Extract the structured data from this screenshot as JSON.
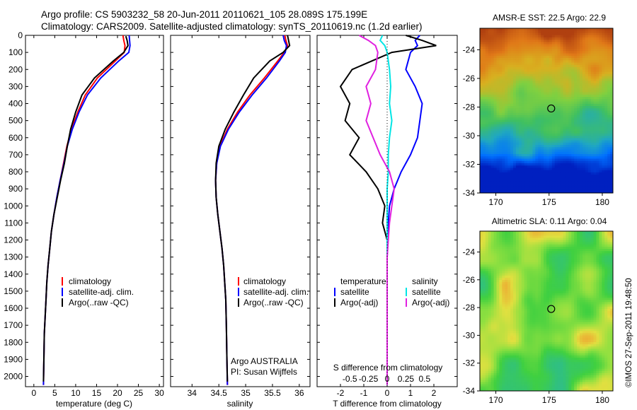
{
  "header": {
    "line1": "Argo profile: CS 5903232_58 20-Jun-2011 20110621_105 28.089S 175.199E",
    "line2": "Climatology: CARS2009. Satellite-adjusted climatology: synTS_20110619.nc (1.2d earlier)"
  },
  "side_stamp": "©IMOS 27-Sep-2011 19:48:50",
  "colors": {
    "red": "#ff0000",
    "blue": "#0000ff",
    "black": "#000000",
    "cyan": "#00e5e5",
    "magenta": "#e020e0"
  },
  "chart_data": [
    {
      "type": "line",
      "panel": "temperature",
      "xlabel": "temperature (deg C)",
      "xlim": [
        -2,
        31
      ],
      "xticks": [
        0,
        5,
        10,
        15,
        20,
        25,
        30
      ],
      "ylim": [
        0,
        2060
      ],
      "yticks": [
        0,
        100,
        200,
        300,
        400,
        500,
        600,
        700,
        800,
        900,
        1000,
        1100,
        1200,
        1300,
        1400,
        1500,
        1600,
        1700,
        1800,
        1900,
        2000
      ],
      "y_reversed": true,
      "legend": [
        "climatology",
        "satellite-adj. clim.",
        "Argo(..raw -QC)"
      ],
      "series": [
        {
          "name": "climatology",
          "color": "#ff0000",
          "x": [
            21.3,
            21.5,
            21.8,
            21.6,
            19.5,
            15.2,
            12.3,
            10.5,
            9.0,
            7.9,
            7.1,
            6.3,
            5.5,
            4.8,
            4.2,
            3.8,
            3.4,
            3.1,
            2.9,
            2.7,
            2.5,
            2.4,
            2.3
          ],
          "y": [
            0,
            30,
            60,
            100,
            150,
            250,
            350,
            450,
            550,
            650,
            750,
            850,
            950,
            1050,
            1150,
            1250,
            1350,
            1450,
            1550,
            1650,
            1750,
            1900,
            2050
          ]
        },
        {
          "name": "satellite-adj. clim.",
          "color": "#0000ff",
          "x": [
            22.8,
            22.9,
            23.0,
            22.7,
            20.3,
            16.0,
            12.8,
            10.8,
            9.2,
            8.0,
            7.2,
            6.3,
            5.5,
            4.8,
            4.2,
            3.8,
            3.4,
            3.1,
            2.9,
            2.7,
            2.5,
            2.4,
            2.3
          ],
          "y": [
            0,
            30,
            60,
            100,
            150,
            250,
            350,
            450,
            550,
            650,
            750,
            850,
            950,
            1050,
            1150,
            1250,
            1350,
            1450,
            1550,
            1650,
            1750,
            1900,
            2050
          ]
        },
        {
          "name": "Argo(..raw -QC)",
          "color": "#000000",
          "x": [
            22.0,
            22.3,
            22.5,
            21.5,
            19.0,
            14.5,
            11.5,
            10.0,
            8.8,
            8.0,
            7.3,
            6.4,
            5.6,
            4.8,
            4.2,
            3.8,
            3.4,
            3.1,
            2.9,
            2.7,
            2.5,
            2.4,
            2.3
          ],
          "y": [
            5,
            30,
            60,
            100,
            150,
            250,
            350,
            450,
            550,
            650,
            750,
            850,
            950,
            1050,
            1150,
            1250,
            1350,
            1450,
            1550,
            1650,
            1750,
            1900,
            2030
          ]
        }
      ]
    },
    {
      "type": "line",
      "panel": "salinity",
      "xlabel": "salinity",
      "xlim": [
        33.6,
        36.2
      ],
      "xticks": [
        34,
        34.5,
        35,
        35.5,
        36
      ],
      "ylim": [
        0,
        2060
      ],
      "y_reversed": true,
      "legend": [
        "climatology",
        "satellite-adj. clim.",
        "Argo(..raw -QC)"
      ],
      "annotation": [
        "Argo AUSTRALIA",
        "PI: Susan Wijffels"
      ],
      "series": [
        {
          "name": "climatology",
          "color": "#ff0000",
          "x": [
            35.73,
            35.75,
            35.78,
            35.72,
            35.6,
            35.35,
            35.08,
            34.85,
            34.66,
            34.52,
            34.46,
            34.44,
            34.45,
            34.48,
            34.52,
            34.56,
            34.59,
            34.61,
            34.63,
            34.64,
            34.65,
            34.66
          ],
          "y": [
            0,
            30,
            60,
            100,
            150,
            250,
            350,
            450,
            550,
            650,
            750,
            850,
            950,
            1050,
            1150,
            1250,
            1350,
            1450,
            1550,
            1700,
            1900,
            2050
          ]
        },
        {
          "name": "satellite-adj. clim.",
          "color": "#0000ff",
          "x": [
            35.7,
            35.72,
            35.76,
            35.74,
            35.63,
            35.39,
            35.12,
            34.88,
            34.68,
            34.53,
            34.46,
            34.44,
            34.45,
            34.48,
            34.52,
            34.56,
            34.59,
            34.61,
            34.63,
            34.64,
            34.65,
            34.66
          ],
          "y": [
            0,
            30,
            60,
            100,
            150,
            250,
            350,
            450,
            550,
            650,
            750,
            850,
            950,
            1050,
            1150,
            1250,
            1350,
            1450,
            1550,
            1700,
            1900,
            2050
          ]
        },
        {
          "name": "Argo(..raw -QC)",
          "color": "#000000",
          "x": [
            35.78,
            35.8,
            35.82,
            35.7,
            35.45,
            35.15,
            34.96,
            34.78,
            34.62,
            34.5,
            34.45,
            34.44,
            34.45,
            34.48,
            34.52,
            34.56,
            34.59,
            34.61,
            34.63,
            34.64,
            34.65,
            34.66
          ],
          "y": [
            0,
            30,
            60,
            100,
            150,
            250,
            350,
            450,
            550,
            650,
            750,
            850,
            950,
            1050,
            1150,
            1250,
            1350,
            1450,
            1550,
            1700,
            1900,
            2030
          ]
        }
      ]
    },
    {
      "type": "line",
      "panel": "difference",
      "xlabel": "T difference from climatology",
      "xlabel_top": "S difference from climatology",
      "xlim": [
        -3,
        3
      ],
      "xticks": [
        -2,
        -1,
        0,
        1,
        2
      ],
      "xticks_top_labels": [
        "-0.5",
        "-0.25",
        "0",
        "0.25",
        "0.5"
      ],
      "xticks_top_values": [
        -1.6,
        -0.8,
        0,
        0.8,
        1.6
      ],
      "ylim": [
        0,
        2060
      ],
      "y_reversed": true,
      "legend_temperature": [
        "temperature",
        "satellite",
        "Argo(-adj)"
      ],
      "legend_salinity": [
        "salinity",
        "satellite",
        "Argo(-adj)"
      ],
      "series": [
        {
          "name": "satellite",
          "color": "#0000ff",
          "x": [
            1.4,
            1.2,
            1.3,
            1.0,
            0.8,
            1.2,
            1.5,
            1.4,
            1.3,
            1.0,
            0.6,
            0.3,
            0.1,
            0.05,
            0.02,
            0,
            0,
            0,
            0,
            0,
            0
          ],
          "y": [
            0,
            30,
            60,
            100,
            200,
            300,
            400,
            500,
            600,
            700,
            800,
            900,
            1000,
            1100,
            1200,
            1300,
            1400,
            1600,
            1800,
            1900,
            2050
          ]
        },
        {
          "name": "Argo(-adj)",
          "color": "#000000",
          "x": [
            0.8,
            1.5,
            2.1,
            0.2,
            -1.5,
            -2.0,
            -1.6,
            -1.8,
            -1.2,
            -1.6,
            -0.9,
            -0.4,
            -0.1,
            -0.2,
            0,
            0,
            0,
            0,
            0,
            0,
            0
          ],
          "y": [
            0,
            30,
            60,
            100,
            200,
            300,
            400,
            500,
            600,
            700,
            800,
            900,
            1000,
            1100,
            1200,
            1300,
            1400,
            1600,
            1800,
            1900,
            2050
          ]
        },
        {
          "name": "satellite",
          "color": "#00e5e5",
          "x": [
            -0.2,
            -0.3,
            -0.1,
            0,
            0.1,
            0.15,
            0.1,
            0.2,
            0.1,
            0.05,
            0.05,
            0,
            0,
            0,
            0,
            0,
            0,
            0,
            0,
            0
          ],
          "y": [
            0,
            30,
            60,
            100,
            200,
            300,
            400,
            500,
            600,
            700,
            800,
            900,
            1000,
            1100,
            1200,
            1300,
            1400,
            1600,
            1800,
            2050
          ]
        },
        {
          "name": "Argo(-adj)",
          "color": "#e020e0",
          "x": [
            -1.2,
            -0.8,
            -0.5,
            -0.4,
            -0.5,
            -0.9,
            -0.7,
            -0.9,
            -0.6,
            -0.3,
            0.1,
            0.3,
            0.2,
            0.1,
            0.05,
            0,
            0,
            0,
            0,
            0
          ],
          "y": [
            0,
            30,
            60,
            100,
            200,
            300,
            400,
            500,
            600,
            700,
            800,
            900,
            1000,
            1100,
            1200,
            1300,
            1400,
            1600,
            1800,
            2050
          ]
        }
      ]
    },
    {
      "type": "heatmap",
      "panel": "sst_map",
      "title": "AMSR-E SST: 22.5 Argo: 22.9",
      "xticks": [
        170,
        175,
        180
      ],
      "yticks": [
        -24,
        -26,
        -28,
        -30,
        -32,
        -34
      ],
      "xlim": [
        168.5,
        181
      ],
      "ylim": [
        -34,
        -22.5
      ],
      "marker": {
        "lon": 175.2,
        "lat": -28.1
      },
      "colormap_stops": [
        "#0020c0",
        "#0070ff",
        "#20a8c0",
        "#40c060",
        "#80d040",
        "#d8b020",
        "#e07818",
        "#b04010"
      ]
    },
    {
      "type": "heatmap",
      "panel": "sla_map",
      "title": "Altimetric SLA: 0.11 Argo: 0.04",
      "xticks": [
        170,
        175,
        180
      ],
      "yticks": [
        -24,
        -26,
        -28,
        -30,
        -32,
        -34
      ],
      "xlim": [
        168.5,
        181
      ],
      "ylim": [
        -34,
        -22.5
      ],
      "marker": {
        "lon": 175.2,
        "lat": -28.1
      },
      "colormap_stops": [
        "#40b0c0",
        "#30c080",
        "#40d040",
        "#90e040",
        "#e0e040",
        "#f0a030"
      ]
    }
  ]
}
